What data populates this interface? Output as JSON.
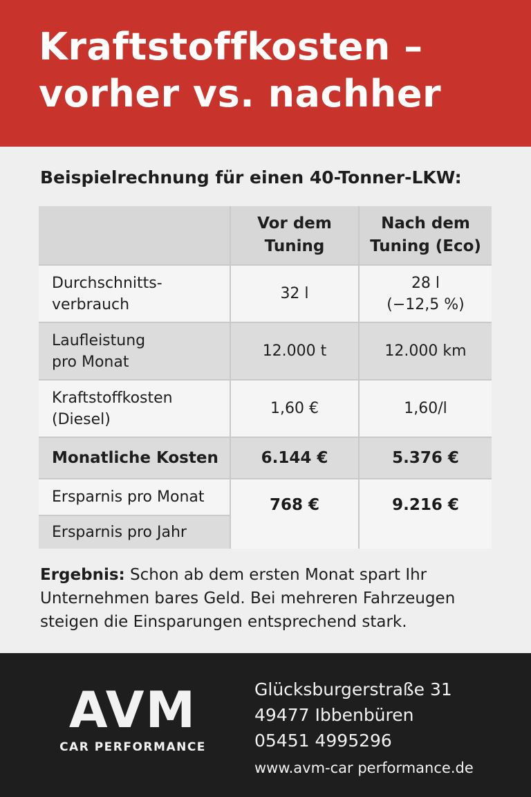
{
  "header": {
    "title_line1": "Kraftstoffkosten –",
    "title_line2": "vorher vs. nachher"
  },
  "subtitle": "Beispielrechnung für einen 40-Tonner-LKW:",
  "table": {
    "headers": {
      "col2_line1": "Vor dem",
      "col2_line2": "Tuning",
      "col3_line1": "Nach dem",
      "col3_line2": "Tuning (Eco)"
    },
    "rows": [
      {
        "label_line1": "Durchschnitts-",
        "label_line2": "verbrauch",
        "vor": "32 l",
        "nach_line1": "28 l",
        "nach_line2": "(−12,5 %)"
      },
      {
        "label_line1": "Laufleistung",
        "label_line2": "pro Monat",
        "vor": "12.000 t",
        "nach": "12.000 km"
      },
      {
        "label_line1": "Kraftstoffkosten",
        "label_line2": "(Diesel)",
        "vor": "1,60 €",
        "nach": "1,60/l"
      },
      {
        "label": "Monatliche Kosten",
        "vor": "6.144 €",
        "nach": "5.376 €"
      }
    ],
    "savings": {
      "label_month": "Ersparnis pro Monat",
      "label_year": "Ersparnis pro Jahr",
      "vor": "768 €",
      "nach": "9.216 €"
    }
  },
  "result": {
    "label": "Ergebnis:",
    "text": " Schon ab dem ersten Monat spart Ihr Unternehmen bares Geld. Bei mehreren Fahrzeugen steigen die Einsparungen entsprechend stark."
  },
  "footer": {
    "logo_main": "AVM",
    "logo_sub": "CAR PERFORMANCE",
    "street": "Glücksburgerstraße 31",
    "city": "49477 Ibbenbüren",
    "phone": "05451 4995296",
    "web": "www.avm-car performance.de"
  },
  "colors": {
    "header_bg": "#c8342b",
    "footer_bg": "#1e1e1e",
    "page_bg": "#efefef"
  }
}
